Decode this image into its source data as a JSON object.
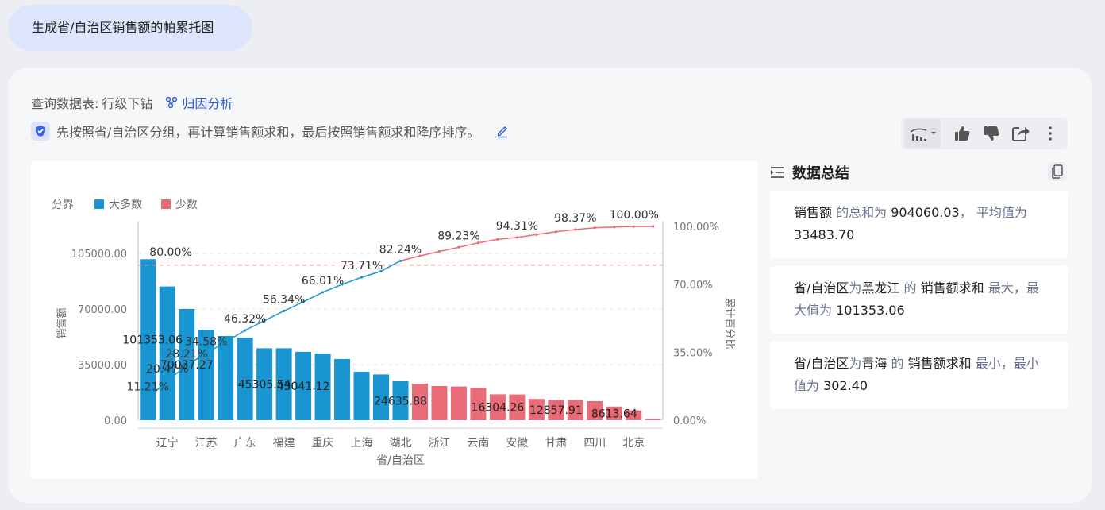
{
  "query": "生成省/自治区销售额的帕累托图",
  "meta": {
    "table_label": "查询数据表:",
    "table_name": "行级下钻",
    "attribution": "归因分析",
    "description": "先按照省/自治区分组，再计算销售额求和，最后按照销售额求和降序排序。"
  },
  "toolbar": {
    "icons": [
      "chart-type-icon",
      "thumbs-up-icon",
      "thumbs-down-icon",
      "share-icon",
      "more-icon"
    ]
  },
  "summary": {
    "title": "数据总结",
    "cards": [
      [
        {
          "t": "销售额",
          "hl": true
        },
        {
          "t": " 的总和为 ",
          "hl": false
        },
        {
          "t": "904060.03",
          "hl": true
        },
        {
          "t": "， 平均值为 ",
          "hl": false
        },
        {
          "t": "33483.70",
          "hl": true
        }
      ],
      [
        {
          "t": "省/自治区",
          "hl": true
        },
        {
          "t": "为",
          "hl": false
        },
        {
          "t": "黑龙江",
          "hl": true
        },
        {
          "t": " 的 ",
          "hl": false
        },
        {
          "t": "销售额求和",
          "hl": true
        },
        {
          "t": " 最大，最大值为 ",
          "hl": false
        },
        {
          "t": "101353.06",
          "hl": true
        }
      ],
      [
        {
          "t": "省/自治区",
          "hl": true
        },
        {
          "t": "为",
          "hl": false
        },
        {
          "t": "青海",
          "hl": true
        },
        {
          "t": " 的 ",
          "hl": false
        },
        {
          "t": "销售额求和",
          "hl": true
        },
        {
          "t": " 最小，最小值为 ",
          "hl": false
        },
        {
          "t": "302.40",
          "hl": true
        }
      ]
    ]
  },
  "chart_data": {
    "type": "bar",
    "legend_title": "分界",
    "legend": [
      {
        "name": "大多数",
        "color": "#1996d2"
      },
      {
        "name": "少数",
        "color": "#ea6b78"
      }
    ],
    "ylabel": "销售额",
    "y2label": "累计百分比",
    "xlabel": "省/自治区",
    "ylim": [
      0,
      122000
    ],
    "y_ticks": [
      "0.00",
      "35000.00",
      "70000.00",
      "105000.00"
    ],
    "y_tick_values": [
      0,
      35000,
      70000,
      105000
    ],
    "y2_ticks": [
      "0.00%",
      "35.00%",
      "70.00%",
      "100.00%"
    ],
    "y2_tick_values": [
      0,
      35,
      70,
      100
    ],
    "threshold_pct": 80,
    "threshold_label": "80.00%",
    "x_tick_labels": [
      "辽宁",
      "江苏",
      "广东",
      "福建",
      "重庆",
      "上海",
      "湖北",
      "浙江",
      "云南",
      "安徽",
      "甘肃",
      "四川",
      "北京"
    ],
    "x_tick_indices": [
      1,
      3,
      5,
      7,
      9,
      11,
      13,
      15,
      17,
      19,
      21,
      23,
      25
    ],
    "values": [
      101353.06,
      84200,
      70037.27,
      57000,
      53000,
      52000,
      45305.54,
      45300,
      43041.12,
      42000,
      38500,
      30500,
      28800,
      24635.88,
      23000,
      21500,
      21200,
      20400,
      16304.26,
      16200,
      13400,
      12857.91,
      12700,
      12000,
      8613.64,
      6200,
      302.4
    ],
    "minority_from_index": 14,
    "bar_labels": [
      {
        "i": 0,
        "text": "101353.06"
      },
      {
        "i": 2,
        "text": "70037.27"
      },
      {
        "i": 6,
        "text": "45305.54"
      },
      {
        "i": 8,
        "text": "43041.12"
      },
      {
        "i": 13,
        "text": "24635.88"
      },
      {
        "i": 18,
        "text": "16304.26"
      },
      {
        "i": 21,
        "text": "12857.91"
      },
      {
        "i": 24,
        "text": "8613.64"
      }
    ],
    "cumulative_pct": [
      11.21,
      20.47,
      28.21,
      34.58,
      40.4,
      46.32,
      51.34,
      56.34,
      61.1,
      66.01,
      70.1,
      73.71,
      76.9,
      82.24,
      84.8,
      87.1,
      89.23,
      91.5,
      93.3,
      94.31,
      95.8,
      97.2,
      98.37,
      99.3,
      99.7,
      99.95,
      100.0
    ],
    "cum_labels": [
      {
        "i": 0,
        "text": "11.21%"
      },
      {
        "i": 1,
        "text": "20.47%"
      },
      {
        "i": 2,
        "text": "28.21%"
      },
      {
        "i": 3,
        "text": "34.58%"
      },
      {
        "i": 5,
        "text": "46.32%"
      },
      {
        "i": 7,
        "text": "56.34%"
      },
      {
        "i": 9,
        "text": "66.01%"
      },
      {
        "i": 11,
        "text": "73.71%"
      },
      {
        "i": 13,
        "text": "82.24%"
      },
      {
        "i": 16,
        "text": "89.23%"
      },
      {
        "i": 19,
        "text": "94.31%"
      },
      {
        "i": 22,
        "text": "98.37%"
      },
      {
        "i": 26,
        "text": "100.00%"
      }
    ]
  }
}
